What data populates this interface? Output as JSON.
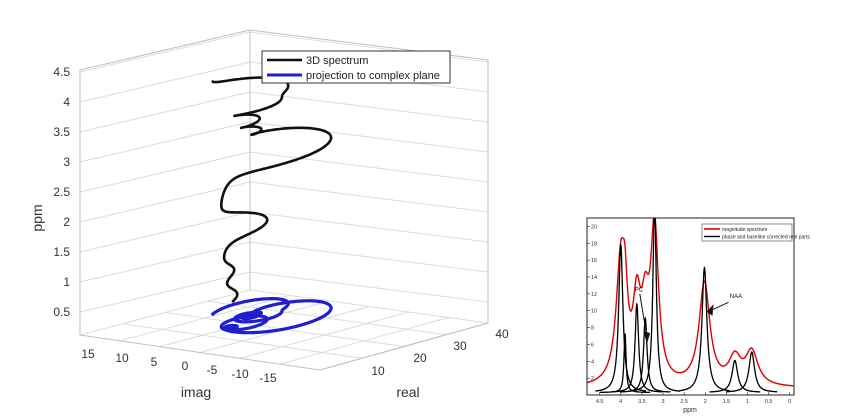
{
  "chart_data": [
    {
      "type": "line",
      "subtype": "3d-line",
      "series": [
        {
          "name": "3D spectrum",
          "color": "#000000"
        },
        {
          "name": "projection to complex plane",
          "color": "#1f1fd0"
        }
      ],
      "zlabel": "ppm",
      "xlabel": "real",
      "ylabel": "imag",
      "z_ticks": [
        "0.5",
        "1",
        "1.5",
        "2",
        "2.5",
        "3",
        "3.5",
        "4",
        "4.5"
      ],
      "real_ticks": [
        "10",
        "20",
        "30",
        "40"
      ],
      "imag_ticks": [
        "15",
        "10",
        "5",
        "0",
        "-5",
        "-10",
        "-15"
      ],
      "zlim": [
        0.3,
        4.6
      ],
      "grid": true,
      "legend_position": "top-right"
    },
    {
      "type": "line",
      "series": [
        {
          "name": "magnitude spectrum",
          "color": "#e00000"
        },
        {
          "name": "phase and baseline corrected real parts",
          "color": "#000000"
        }
      ],
      "xlabel": "ppm",
      "x_ticks": [
        "4.5",
        "4",
        "3.5",
        "3",
        "2.5",
        "2",
        "1.5",
        "1",
        "0.5",
        "0"
      ],
      "y_ticks": [
        "2",
        "4",
        "6",
        "8",
        "10",
        "12",
        "14",
        "16",
        "18",
        "20"
      ],
      "xlim": [
        4.8,
        -0.1
      ],
      "ylim": [
        0,
        21
      ],
      "peaks": [
        {
          "ppm": 4.0,
          "height": 17.5,
          "width": 0.06
        },
        {
          "ppm": 3.9,
          "height": 7.0,
          "width": 0.03
        },
        {
          "ppm": 3.62,
          "height": 10.5,
          "width": 0.05
        },
        {
          "ppm": 3.42,
          "height": 8.8,
          "width": 0.05
        },
        {
          "ppm": 3.2,
          "height": 22.0,
          "width": 0.05
        },
        {
          "ppm": 2.02,
          "height": 14.8,
          "width": 0.07
        },
        {
          "ppm": 1.3,
          "height": 3.8,
          "width": 0.08
        },
        {
          "ppm": 0.9,
          "height": 4.8,
          "width": 0.08
        }
      ],
      "annotations": [
        {
          "text": "PC",
          "ppm": 3.62,
          "y": 12.3
        },
        {
          "text": "NAA",
          "ppm": 1.42,
          "y": 11.5
        }
      ]
    }
  ]
}
